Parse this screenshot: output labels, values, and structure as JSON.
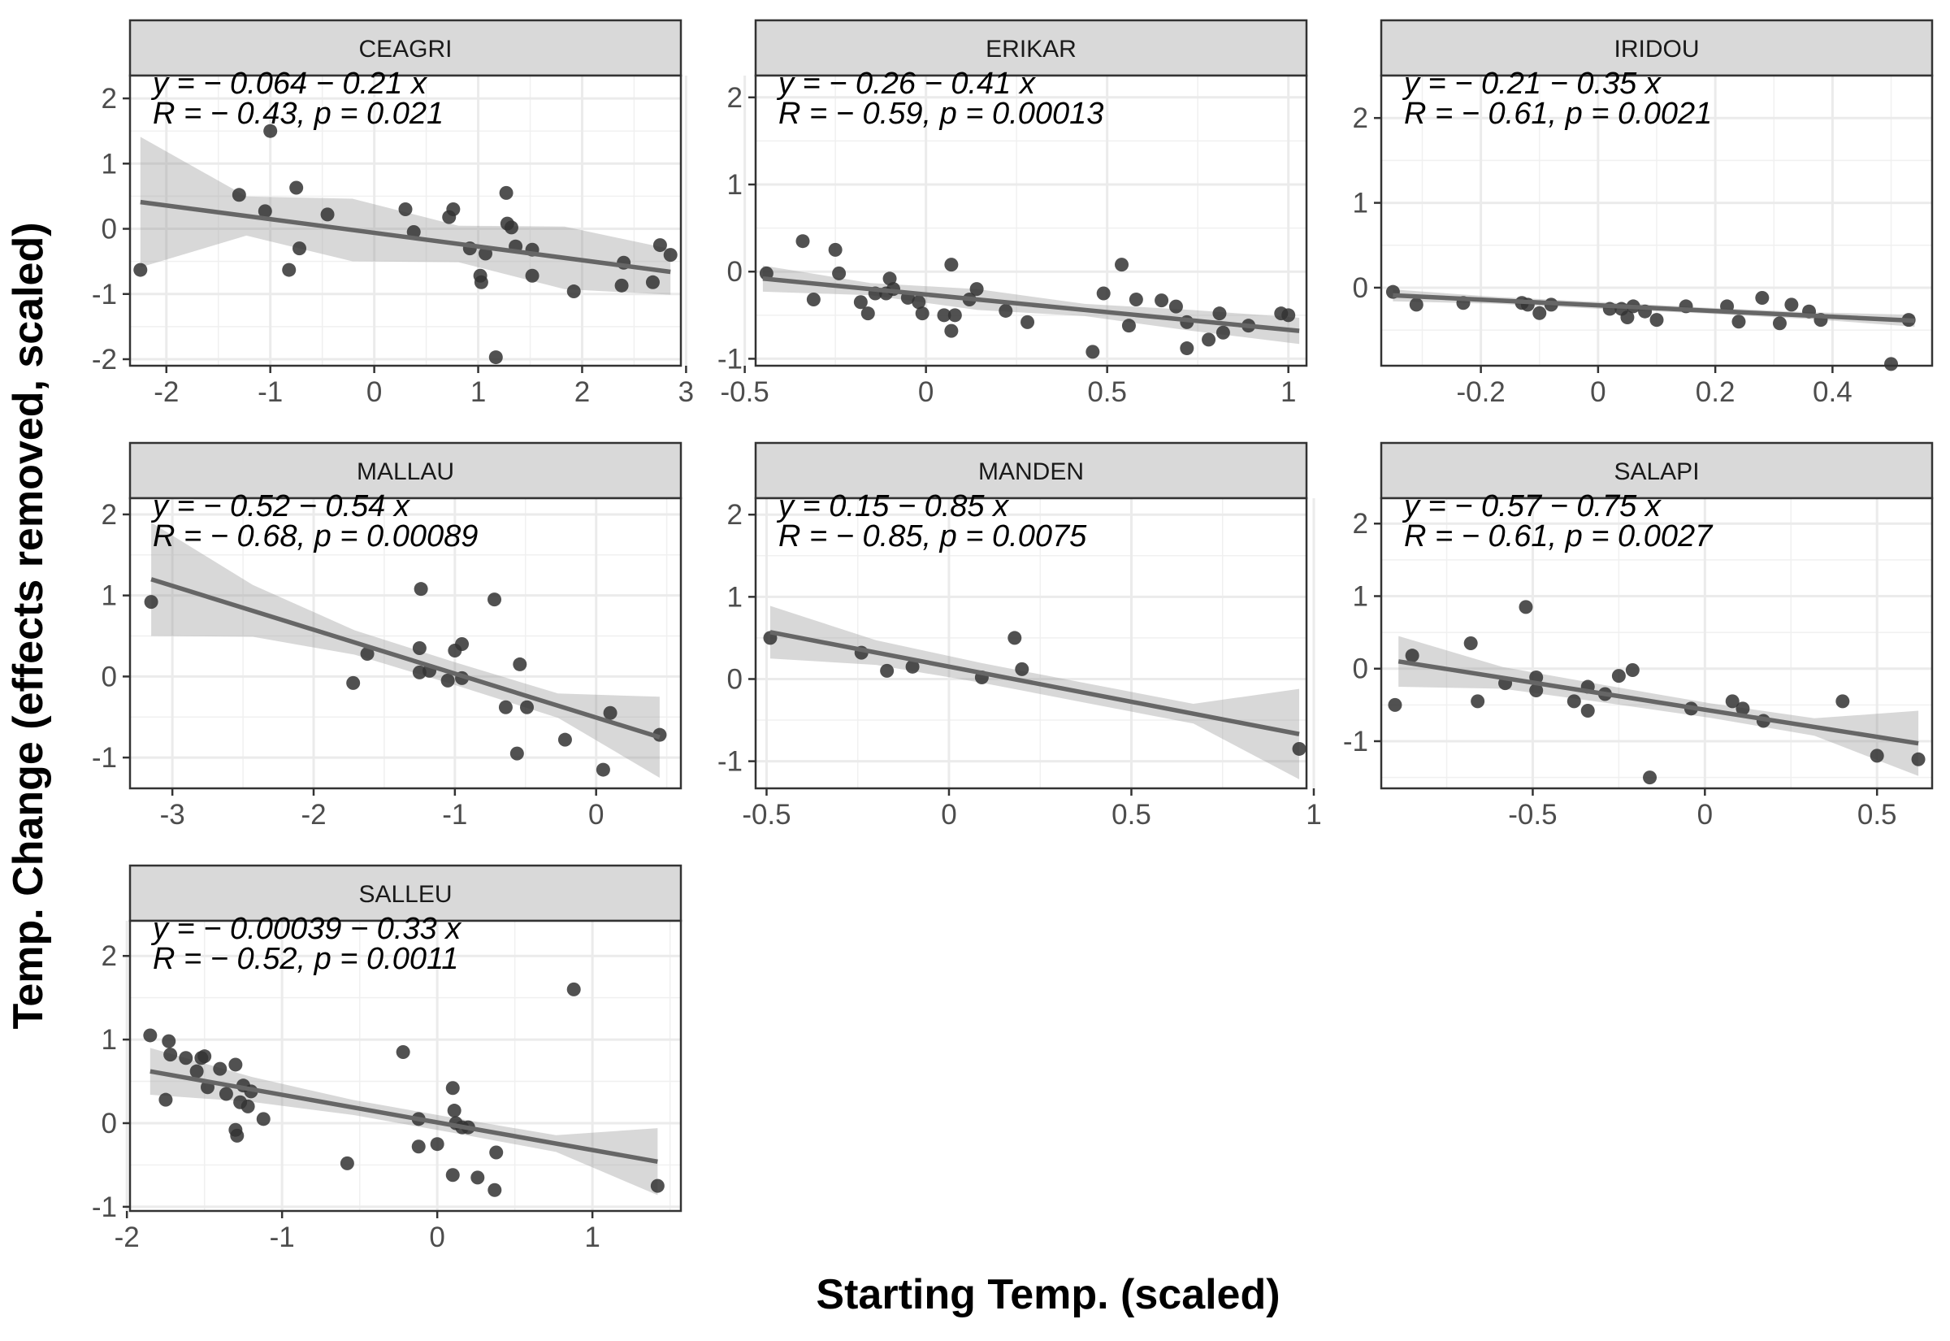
{
  "chart_data": {
    "type": "scatter",
    "xlabel": "Starting Temp. (scaled)",
    "ylabel": "Temp. Change (effects removed, scaled)",
    "facets": [
      {
        "name": "CEAGRI",
        "equation": "y = − 0.064 − 0.21 x",
        "stats": "R = − 0.43, p = 0.021",
        "xlim": [
          -2.35,
          2.95
        ],
        "ylim": [
          -2.1,
          2.35
        ],
        "xticks": [
          -2,
          -1,
          0,
          1,
          2,
          3
        ],
        "yticks": [
          -2,
          -1,
          0,
          1,
          2
        ],
        "fit": [
          -2.25,
          0.41,
          2.85,
          -0.66
        ],
        "band": [
          1.0,
          0.3,
          0.48,
          0.28,
          0.48,
          0.35
        ],
        "points": [
          [
            -2.25,
            -0.63
          ],
          [
            -1.3,
            0.52
          ],
          [
            -1.05,
            0.27
          ],
          [
            -1.0,
            1.5
          ],
          [
            -0.82,
            -0.63
          ],
          [
            -0.75,
            0.63
          ],
          [
            -0.72,
            -0.3
          ],
          [
            -0.45,
            0.22
          ],
          [
            0.3,
            0.3
          ],
          [
            0.38,
            -0.05
          ],
          [
            0.72,
            0.18
          ],
          [
            0.76,
            0.3
          ],
          [
            0.92,
            -0.3
          ],
          [
            1.02,
            -0.72
          ],
          [
            1.03,
            -0.82
          ],
          [
            1.07,
            -0.38
          ],
          [
            1.17,
            -1.97
          ],
          [
            1.27,
            0.55
          ],
          [
            1.28,
            0.08
          ],
          [
            1.32,
            0.02
          ],
          [
            1.36,
            -0.27
          ],
          [
            1.52,
            -0.32
          ],
          [
            1.52,
            -0.72
          ],
          [
            1.92,
            -0.96
          ],
          [
            2.38,
            -0.87
          ],
          [
            2.4,
            -0.52
          ],
          [
            2.68,
            -0.82
          ],
          [
            2.75,
            -0.25
          ],
          [
            2.85,
            -0.4
          ]
        ]
      },
      {
        "name": "ERIKAR",
        "equation": "y = − 0.26 − 0.41 x",
        "stats": "R = − 0.59, p = 0.00013",
        "xlim": [
          -0.47,
          1.05
        ],
        "ylim": [
          -1.08,
          2.25
        ],
        "xticks": [
          -0.5,
          0.0,
          0.5,
          1.0
        ],
        "yticks": [
          -1,
          0,
          1,
          2
        ],
        "fit": [
          -0.45,
          -0.08,
          1.03,
          -0.68
        ],
        "band": [
          0.15,
          0.07,
          0.12,
          0.07,
          0.12,
          0.15
        ],
        "points": [
          [
            -0.44,
            -0.02
          ],
          [
            -0.34,
            0.35
          ],
          [
            -0.31,
            -0.32
          ],
          [
            -0.25,
            0.25
          ],
          [
            -0.24,
            -0.02
          ],
          [
            -0.18,
            -0.35
          ],
          [
            -0.16,
            -0.48
          ],
          [
            -0.14,
            -0.25
          ],
          [
            -0.11,
            -0.25
          ],
          [
            -0.1,
            -0.08
          ],
          [
            -0.09,
            -0.2
          ],
          [
            -0.05,
            -0.3
          ],
          [
            -0.02,
            -0.35
          ],
          [
            -0.01,
            -0.48
          ],
          [
            0.05,
            -0.5
          ],
          [
            0.07,
            -0.68
          ],
          [
            0.07,
            0.08
          ],
          [
            0.08,
            -0.5
          ],
          [
            0.12,
            -0.32
          ],
          [
            0.14,
            -0.2
          ],
          [
            0.22,
            -0.45
          ],
          [
            0.28,
            -0.58
          ],
          [
            0.46,
            -0.92
          ],
          [
            0.49,
            -0.25
          ],
          [
            0.54,
            0.08
          ],
          [
            0.56,
            -0.62
          ],
          [
            0.58,
            -0.32
          ],
          [
            0.65,
            -0.33
          ],
          [
            0.69,
            -0.4
          ],
          [
            0.72,
            -0.88
          ],
          [
            0.72,
            -0.58
          ],
          [
            0.78,
            -0.78
          ],
          [
            0.81,
            -0.48
          ],
          [
            0.82,
            -0.7
          ],
          [
            0.89,
            -0.62
          ],
          [
            0.98,
            -0.48
          ],
          [
            1.0,
            -0.5
          ]
        ]
      },
      {
        "name": "IRIDOU",
        "equation": "y = − 0.21 − 0.35 x",
        "stats": "R = − 0.61, p = 0.0021",
        "xlim": [
          -0.37,
          0.57
        ],
        "ylim": [
          -0.92,
          2.5
        ],
        "xticks": [
          -0.2,
          0.0,
          0.2,
          0.4
        ],
        "yticks": [
          0,
          1,
          2
        ],
        "fit": [
          -0.35,
          -0.09,
          0.54,
          -0.39
        ],
        "band": [
          0.07,
          0.04,
          0.04,
          0.035,
          0.04,
          0.07
        ],
        "points": [
          [
            -0.35,
            -0.05
          ],
          [
            -0.31,
            -0.2
          ],
          [
            -0.23,
            -0.18
          ],
          [
            -0.13,
            -0.18
          ],
          [
            -0.12,
            -0.2
          ],
          [
            -0.1,
            -0.3
          ],
          [
            -0.08,
            -0.2
          ],
          [
            0.02,
            -0.25
          ],
          [
            0.04,
            -0.25
          ],
          [
            0.05,
            -0.35
          ],
          [
            0.06,
            -0.22
          ],
          [
            0.08,
            -0.28
          ],
          [
            0.1,
            -0.38
          ],
          [
            0.15,
            -0.22
          ],
          [
            0.22,
            -0.22
          ],
          [
            0.24,
            -0.4
          ],
          [
            0.28,
            -0.12
          ],
          [
            0.31,
            -0.42
          ],
          [
            0.33,
            -0.2
          ],
          [
            0.36,
            -0.28
          ],
          [
            0.38,
            -0.38
          ],
          [
            0.5,
            -0.9
          ],
          [
            0.53,
            -0.38
          ]
        ]
      },
      {
        "name": "MALLAU",
        "equation": "y = − 0.52 − 0.54 x",
        "stats": "R = − 0.68, p = 0.00089",
        "xlim": [
          -3.3,
          0.6
        ],
        "ylim": [
          -1.38,
          2.2
        ],
        "xticks": [
          -3,
          -2,
          -1,
          0
        ],
        "yticks": [
          -1,
          0,
          1,
          2
        ],
        "fit": [
          -3.15,
          1.2,
          0.45,
          -0.75
        ],
        "band": [
          0.7,
          0.32,
          0.15,
          0.14,
          0.15,
          0.5
        ],
        "points": [
          [
            -3.15,
            0.92
          ],
          [
            -1.72,
            -0.08
          ],
          [
            -1.62,
            0.28
          ],
          [
            -1.25,
            0.05
          ],
          [
            -1.25,
            0.35
          ],
          [
            -1.24,
            1.08
          ],
          [
            -1.18,
            0.07
          ],
          [
            -1.05,
            -0.05
          ],
          [
            -1.0,
            0.32
          ],
          [
            -0.95,
            0.4
          ],
          [
            -0.95,
            -0.02
          ],
          [
            -0.72,
            0.95
          ],
          [
            -0.64,
            -0.38
          ],
          [
            -0.56,
            -0.95
          ],
          [
            -0.54,
            0.15
          ],
          [
            -0.49,
            -0.38
          ],
          [
            -0.22,
            -0.78
          ],
          [
            0.05,
            -1.15
          ],
          [
            0.1,
            -0.45
          ],
          [
            0.45,
            -0.72
          ]
        ]
      },
      {
        "name": "MANDEN",
        "equation": "y = 0.15 − 0.85 x",
        "stats": "R = − 0.85, p = 0.0075",
        "xlim": [
          -0.53,
          0.98
        ],
        "ylim": [
          -1.33,
          2.2
        ],
        "xticks": [
          -0.5,
          0.0,
          0.5,
          1.0
        ],
        "yticks": [
          -1,
          0,
          1,
          2
        ],
        "fit": [
          -0.49,
          0.57,
          0.96,
          -0.67
        ],
        "band": [
          0.32,
          0.15,
          0.12,
          0.12,
          0.12,
          0.55
        ],
        "points": [
          [
            -0.49,
            0.5
          ],
          [
            -0.24,
            0.32
          ],
          [
            -0.17,
            0.1
          ],
          [
            -0.1,
            0.15
          ],
          [
            0.09,
            0.02
          ],
          [
            0.18,
            0.5
          ],
          [
            0.2,
            0.12
          ],
          [
            0.96,
            -0.85
          ]
        ]
      },
      {
        "name": "SALAPI",
        "equation": "y = − 0.57 − 0.75 x",
        "stats": "R = − 0.61, p = 0.0027",
        "xlim": [
          -0.94,
          0.66
        ],
        "ylim": [
          -1.65,
          2.35
        ],
        "xticks": [
          -0.5,
          0.0,
          0.5
        ],
        "yticks": [
          -1,
          0,
          1,
          2
        ],
        "fit": [
          -0.89,
          0.1,
          0.62,
          -1.03
        ],
        "band": [
          0.35,
          0.15,
          0.12,
          0.1,
          0.12,
          0.45
        ],
        "points": [
          [
            -0.9,
            -0.5
          ],
          [
            -0.85,
            0.18
          ],
          [
            -0.68,
            0.35
          ],
          [
            -0.66,
            -0.45
          ],
          [
            -0.58,
            -0.2
          ],
          [
            -0.52,
            0.85
          ],
          [
            -0.49,
            -0.12
          ],
          [
            -0.49,
            -0.3
          ],
          [
            -0.38,
            -0.45
          ],
          [
            -0.34,
            -0.25
          ],
          [
            -0.34,
            -0.58
          ],
          [
            -0.29,
            -0.35
          ],
          [
            -0.25,
            -0.1
          ],
          [
            -0.21,
            -0.02
          ],
          [
            -0.16,
            -1.5
          ],
          [
            -0.04,
            -0.55
          ],
          [
            0.08,
            -0.45
          ],
          [
            0.11,
            -0.55
          ],
          [
            0.17,
            -0.72
          ],
          [
            0.4,
            -0.45
          ],
          [
            0.5,
            -1.2
          ],
          [
            0.62,
            -1.25
          ]
        ]
      },
      {
        "name": "SALLEU",
        "equation": "y = − 0.00039 − 0.33 x",
        "stats": "R = − 0.52, p = 0.0011",
        "xlim": [
          -1.98,
          1.57
        ],
        "ylim": [
          -1.05,
          2.42
        ],
        "xticks": [
          -2,
          -1,
          0,
          1
        ],
        "yticks": [
          -1,
          0,
          1,
          2
        ],
        "fit": [
          -1.85,
          0.62,
          1.42,
          -0.46
        ],
        "band": [
          0.28,
          0.15,
          0.09,
          0.09,
          0.1,
          0.4
        ],
        "points": [
          [
            -1.85,
            1.05
          ],
          [
            -1.75,
            0.28
          ],
          [
            -1.73,
            0.98
          ],
          [
            -1.72,
            0.82
          ],
          [
            -1.62,
            0.78
          ],
          [
            -1.55,
            0.62
          ],
          [
            -1.52,
            0.78
          ],
          [
            -1.5,
            0.8
          ],
          [
            -1.48,
            0.43
          ],
          [
            -1.4,
            0.65
          ],
          [
            -1.36,
            0.35
          ],
          [
            -1.3,
            0.7
          ],
          [
            -1.3,
            -0.08
          ],
          [
            -1.29,
            -0.15
          ],
          [
            -1.27,
            0.25
          ],
          [
            -1.25,
            0.45
          ],
          [
            -1.22,
            0.2
          ],
          [
            -1.2,
            0.38
          ],
          [
            -1.12,
            0.05
          ],
          [
            -0.58,
            -0.48
          ],
          [
            -0.22,
            0.85
          ],
          [
            -0.12,
            0.05
          ],
          [
            -0.12,
            -0.28
          ],
          [
            0.0,
            -0.25
          ],
          [
            0.1,
            0.42
          ],
          [
            0.1,
            -0.62
          ],
          [
            0.11,
            0.15
          ],
          [
            0.12,
            0.0
          ],
          [
            0.16,
            -0.05
          ],
          [
            0.2,
            -0.05
          ],
          [
            0.26,
            -0.65
          ],
          [
            0.37,
            -0.8
          ],
          [
            0.38,
            -0.35
          ],
          [
            0.88,
            1.6
          ],
          [
            1.42,
            -0.75
          ]
        ]
      }
    ]
  }
}
